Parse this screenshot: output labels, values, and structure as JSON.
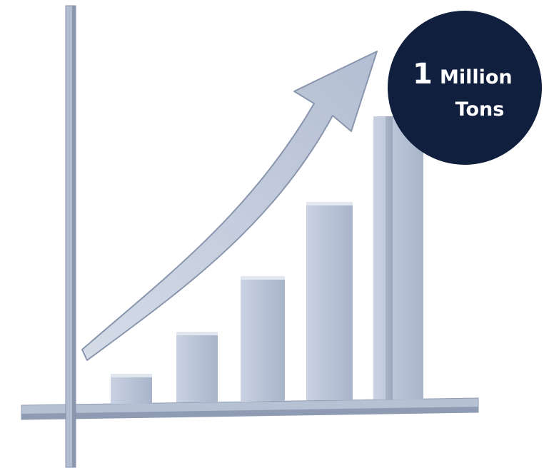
{
  "badge": {
    "number": "1",
    "unit": "Million",
    "label": "Tons"
  }
}
